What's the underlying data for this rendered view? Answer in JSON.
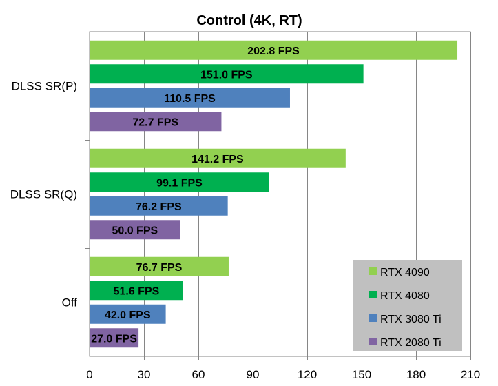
{
  "chart_data": {
    "type": "bar",
    "orientation": "horizontal",
    "title": "Control (4K, RT)",
    "categories": [
      "DLSS SR(P)",
      "DLSS SR(Q)",
      "Off"
    ],
    "series": [
      {
        "name": "RTX 4090",
        "color": "#92d050",
        "values": [
          202.8,
          141.2,
          76.7
        ],
        "labels": [
          "202.8 FPS",
          "141.2 FPS",
          "76.7 FPS"
        ]
      },
      {
        "name": "RTX 4080",
        "color": "#00b050",
        "values": [
          151.0,
          99.1,
          51.6
        ],
        "labels": [
          "151.0 FPS",
          "99.1 FPS",
          "51.6 FPS"
        ]
      },
      {
        "name": "RTX 3080 Ti",
        "color": "#4f81bd",
        "values": [
          110.5,
          76.2,
          42.0
        ],
        "labels": [
          "110.5 FPS",
          "76.2 FPS",
          "42.0 FPS"
        ]
      },
      {
        "name": "RTX 2080 Ti",
        "color": "#8064a2",
        "values": [
          72.7,
          50.0,
          27.0
        ],
        "labels": [
          "72.7 FPS",
          "50.0 FPS",
          "27.0 FPS"
        ]
      }
    ],
    "xlim": [
      0,
      210
    ],
    "xticks": [
      "0",
      "30",
      "60",
      "90",
      "120",
      "150",
      "180",
      "210"
    ],
    "grid": true,
    "legend_position": "bottom-right"
  }
}
